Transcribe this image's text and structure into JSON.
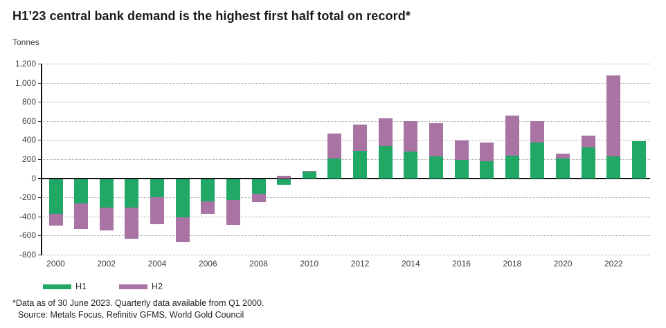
{
  "page": {
    "title": "H1’23 central bank demand is the highest first half total on record*",
    "axis_unit": "Tonnes",
    "footnote": "*Data as of 30 June 2023. Quarterly data available from Q1 2000.",
    "source": "Source: Metals Focus, Refinitiv GFMS, World Gold Council"
  },
  "chart_data": {
    "type": "bar",
    "stacked": true,
    "title": "H1’23 central bank demand is the highest first half total on record*",
    "ylabel": "Tonnes",
    "ylim": [
      -800,
      1200
    ],
    "ytick_step": 200,
    "grid": "dotted-horizontal",
    "legend_position": "bottom-left",
    "categories": [
      2000,
      2001,
      2002,
      2003,
      2004,
      2005,
      2006,
      2007,
      2008,
      2009,
      2010,
      2011,
      2012,
      2013,
      2014,
      2015,
      2016,
      2017,
      2018,
      2019,
      2020,
      2021,
      2022,
      2023
    ],
    "xtick_labels": [
      "2000",
      "2002",
      "2004",
      "2006",
      "2008",
      "2010",
      "2012",
      "2014",
      "2016",
      "2018",
      "2020",
      "2022"
    ],
    "series": [
      {
        "name": "H1",
        "color": "#21A867",
        "values": [
          -370,
          -265,
          -310,
          -310,
          -200,
          -410,
          -245,
          -230,
          -160,
          -60,
          75,
          205,
          285,
          340,
          280,
          230,
          190,
          180,
          235,
          375,
          205,
          320,
          230,
          390
        ]
      },
      {
        "name": "H2",
        "color": "#A974A4",
        "values": [
          -125,
          -270,
          -235,
          -320,
          -280,
          -260,
          -130,
          -260,
          -90,
          25,
          5,
          265,
          280,
          285,
          320,
          345,
          205,
          195,
          420,
          225,
          50,
          130,
          850,
          0
        ]
      }
    ]
  }
}
